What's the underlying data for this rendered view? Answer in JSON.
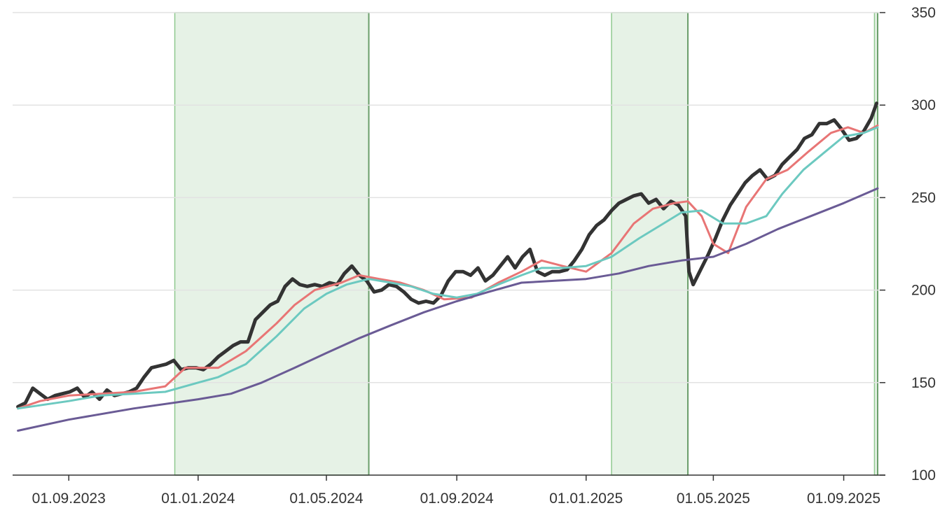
{
  "chart_data": {
    "type": "line",
    "title": "",
    "xlabel": "",
    "ylabel": "",
    "x_range": [
      "2023-07-10",
      "2025-10-05"
    ],
    "ylim": [
      100,
      350
    ],
    "y_axis_position": "right",
    "grid": {
      "horizontal": true,
      "vertical": false
    },
    "y_ticks": [
      100,
      150,
      200,
      250,
      300,
      350
    ],
    "y_tick_labels": [
      "100",
      "150",
      "200",
      "250",
      "300",
      "350"
    ],
    "x_ticks": [
      "2023-09-01",
      "2024-01-01",
      "2024-05-01",
      "2024-09-01",
      "2025-01-01",
      "2025-05-01",
      "2025-09-01"
    ],
    "x_tick_labels": [
      "01.09.2023",
      "01.01.2024",
      "01.05.2024",
      "01.09.2024",
      "01.01.2025",
      "01.05.2025",
      "01.09.2025"
    ],
    "shaded_regions": [
      {
        "start": "2023-12-10",
        "end": "2024-06-10",
        "color": "#e6f2e6",
        "edge_color": "#8fc98f"
      },
      {
        "start": "2025-01-25",
        "end": "2025-04-07",
        "color": "#e6f2e6",
        "edge_color": "#8fc98f"
      },
      {
        "start": "2025-09-30",
        "end": "2025-10-03",
        "color": "#e6f2e6",
        "edge_color": "#8fc98f"
      }
    ],
    "series": [
      {
        "color": "#333333",
        "width": 5,
        "x": [
          "2023-07-15",
          "2023-07-22",
          "2023-07-29",
          "2023-08-05",
          "2023-08-12",
          "2023-08-19",
          "2023-08-26",
          "2023-09-02",
          "2023-09-09",
          "2023-09-16",
          "2023-09-23",
          "2023-09-30",
          "2023-10-07",
          "2023-10-14",
          "2023-10-21",
          "2023-10-28",
          "2023-11-04",
          "2023-11-11",
          "2023-11-18",
          "2023-11-25",
          "2023-12-02",
          "2023-12-09",
          "2023-12-16",
          "2023-12-23",
          "2023-12-30",
          "2024-01-06",
          "2024-01-13",
          "2024-01-20",
          "2024-01-27",
          "2024-02-03",
          "2024-02-10",
          "2024-02-17",
          "2024-02-24",
          "2024-03-02",
          "2024-03-09",
          "2024-03-16",
          "2024-03-23",
          "2024-03-30",
          "2024-04-06",
          "2024-04-13",
          "2024-04-20",
          "2024-04-27",
          "2024-05-04",
          "2024-05-11",
          "2024-05-18",
          "2024-05-25",
          "2024-06-01",
          "2024-06-08",
          "2024-06-15",
          "2024-06-22",
          "2024-06-29",
          "2024-07-06",
          "2024-07-13",
          "2024-07-20",
          "2024-07-27",
          "2024-08-03",
          "2024-08-10",
          "2024-08-17",
          "2024-08-24",
          "2024-08-31",
          "2024-09-07",
          "2024-09-14",
          "2024-09-21",
          "2024-09-28",
          "2024-10-05",
          "2024-10-12",
          "2024-10-19",
          "2024-10-26",
          "2024-11-02",
          "2024-11-09",
          "2024-11-16",
          "2024-11-23",
          "2024-11-30",
          "2024-12-07",
          "2024-12-14",
          "2024-12-21",
          "2024-12-28",
          "2025-01-04",
          "2025-01-11",
          "2025-01-18",
          "2025-01-25",
          "2025-02-01",
          "2025-02-08",
          "2025-02-15",
          "2025-02-22",
          "2025-03-01",
          "2025-03-08",
          "2025-03-15",
          "2025-03-22",
          "2025-03-29",
          "2025-04-05",
          "2025-04-08",
          "2025-04-12",
          "2025-04-19",
          "2025-04-26",
          "2025-05-03",
          "2025-05-10",
          "2025-05-17",
          "2025-05-24",
          "2025-05-31",
          "2025-06-07",
          "2025-06-14",
          "2025-06-21",
          "2025-06-28",
          "2025-07-05",
          "2025-07-12",
          "2025-07-19",
          "2025-07-26",
          "2025-08-02",
          "2025-08-09",
          "2025-08-16",
          "2025-08-23",
          "2025-08-30",
          "2025-09-06",
          "2025-09-13",
          "2025-09-20",
          "2025-09-27",
          "2025-10-02"
        ],
        "y": [
          137,
          139,
          147,
          144,
          141,
          143,
          144,
          145,
          147,
          142,
          145,
          141,
          146,
          143,
          144,
          145,
          147,
          153,
          158,
          159,
          160,
          162,
          157,
          158,
          158,
          157,
          160,
          164,
          167,
          170,
          172,
          172,
          184,
          188,
          192,
          194,
          202,
          206,
          203,
          202,
          203,
          202,
          204,
          203,
          209,
          213,
          208,
          205,
          199,
          200,
          203,
          202,
          199,
          195,
          193,
          194,
          193,
          197,
          205,
          210,
          210,
          208,
          212,
          205,
          208,
          213,
          218,
          212,
          218,
          222,
          210,
          208,
          210,
          210,
          211,
          216,
          222,
          230,
          235,
          238,
          243,
          247,
          249,
          251,
          252,
          247,
          249,
          244,
          248,
          246,
          240,
          210,
          203,
          211,
          219,
          228,
          238,
          246,
          252,
          258,
          262,
          265,
          260,
          262,
          268,
          272,
          276,
          282,
          284,
          290,
          290,
          292,
          287,
          281,
          282,
          286,
          293,
          301
        ]
      },
      {
        "color": "#e87575",
        "width": 3,
        "x": [
          "2023-07-15",
          "2023-08-05",
          "2023-09-01",
          "2023-10-01",
          "2023-11-01",
          "2023-12-01",
          "2023-12-20",
          "2024-01-20",
          "2024-02-15",
          "2024-03-15",
          "2024-04-01",
          "2024-04-20",
          "2024-05-15",
          "2024-06-01",
          "2024-06-20",
          "2024-07-10",
          "2024-08-01",
          "2024-08-20",
          "2024-09-15",
          "2024-10-10",
          "2024-11-01",
          "2024-11-20",
          "2024-12-10",
          "2025-01-01",
          "2025-01-25",
          "2025-02-15",
          "2025-03-05",
          "2025-03-25",
          "2025-04-07",
          "2025-04-20",
          "2025-05-01",
          "2025-05-15",
          "2025-06-01",
          "2025-06-20",
          "2025-07-10",
          "2025-07-30",
          "2025-08-20",
          "2025-09-05",
          "2025-09-20",
          "2025-10-03"
        ],
        "y": [
          136,
          140,
          143,
          144,
          145,
          148,
          158,
          158,
          167,
          182,
          192,
          200,
          204,
          208,
          206,
          204,
          200,
          195,
          196,
          204,
          210,
          216,
          213,
          210,
          220,
          236,
          244,
          247,
          248,
          240,
          225,
          220,
          245,
          260,
          265,
          275,
          285,
          288,
          285,
          289
        ]
      },
      {
        "color": "#6cc9c0",
        "width": 3,
        "x": [
          "2023-07-15",
          "2023-09-01",
          "2023-10-01",
          "2023-11-01",
          "2023-12-01",
          "2024-01-01",
          "2024-01-20",
          "2024-02-15",
          "2024-03-15",
          "2024-04-10",
          "2024-05-01",
          "2024-05-20",
          "2024-06-10",
          "2024-07-01",
          "2024-07-20",
          "2024-08-10",
          "2024-09-01",
          "2024-09-20",
          "2024-10-10",
          "2024-11-01",
          "2024-11-20",
          "2024-12-10",
          "2025-01-01",
          "2025-01-25",
          "2025-02-20",
          "2025-03-15",
          "2025-04-01",
          "2025-04-20",
          "2025-05-10",
          "2025-06-01",
          "2025-06-20",
          "2025-07-05",
          "2025-07-25",
          "2025-08-15",
          "2025-09-01",
          "2025-09-20",
          "2025-10-03"
        ],
        "y": [
          136,
          140,
          143,
          144,
          145,
          150,
          153,
          160,
          175,
          190,
          198,
          203,
          206,
          204,
          202,
          198,
          196,
          198,
          203,
          208,
          212,
          212,
          213,
          218,
          228,
          236,
          242,
          243,
          236,
          236,
          240,
          252,
          265,
          275,
          283,
          285,
          288
        ]
      },
      {
        "color": "#6a5b95",
        "width": 3,
        "x": [
          "2023-07-15",
          "2023-09-01",
          "2023-11-01",
          "2024-01-01",
          "2024-02-01",
          "2024-03-01",
          "2024-04-01",
          "2024-05-01",
          "2024-06-01",
          "2024-07-01",
          "2024-08-01",
          "2024-09-01",
          "2024-10-01",
          "2024-11-01",
          "2024-12-01",
          "2025-01-01",
          "2025-02-01",
          "2025-03-01",
          "2025-04-01",
          "2025-05-01",
          "2025-06-01",
          "2025-07-01",
          "2025-08-01",
          "2025-09-01",
          "2025-10-03"
        ],
        "y": [
          124,
          130,
          136,
          141,
          144,
          150,
          158,
          166,
          174,
          181,
          188,
          194,
          199,
          204,
          205,
          206,
          209,
          213,
          216,
          218,
          225,
          233,
          240,
          247,
          255
        ]
      }
    ]
  }
}
